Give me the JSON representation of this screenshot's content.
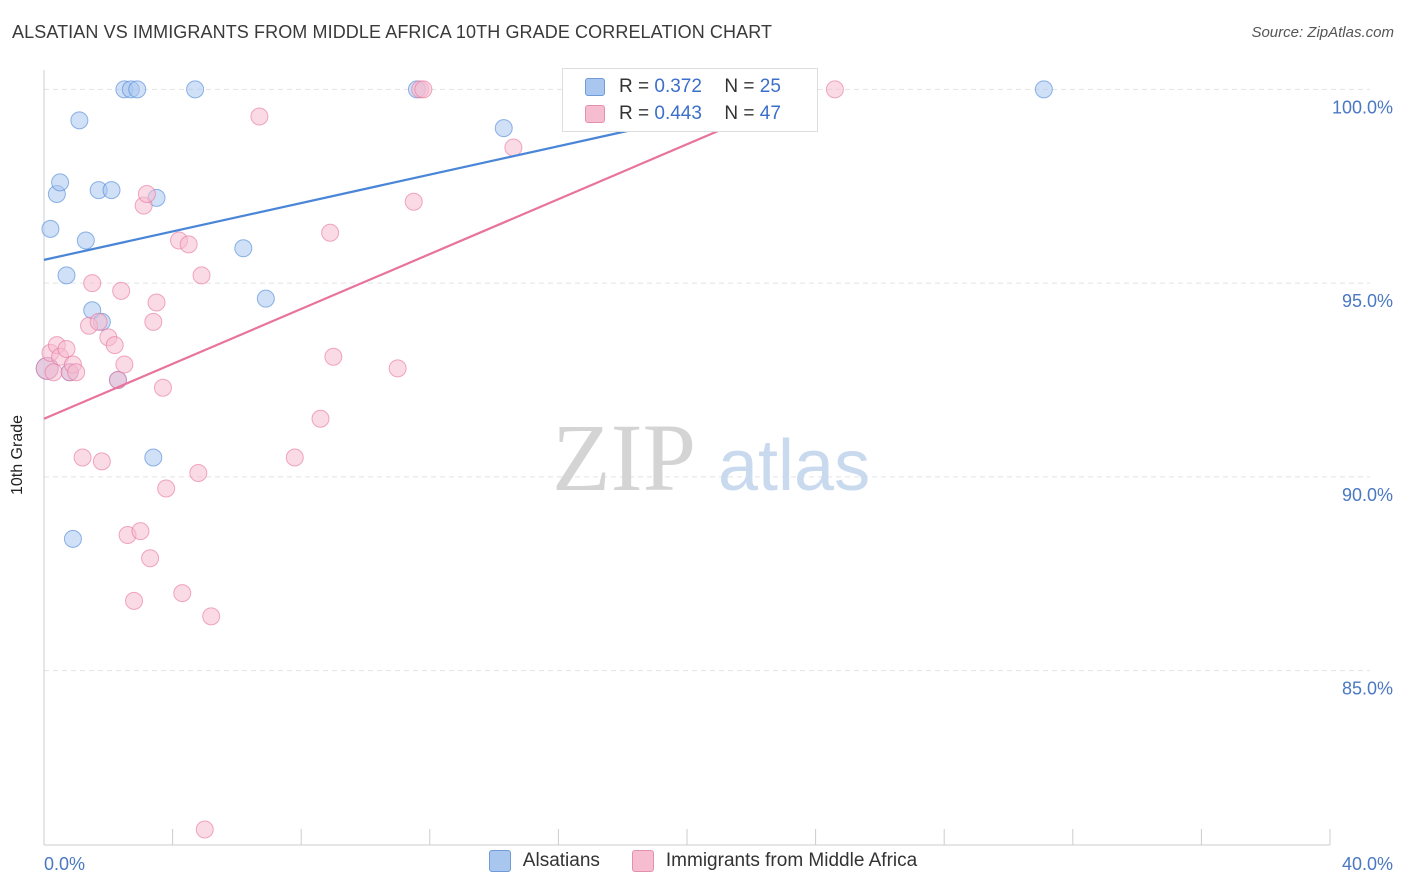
{
  "title": "ALSATIAN VS IMMIGRANTS FROM MIDDLE AFRICA 10TH GRADE CORRELATION CHART",
  "source": "Source: ZipAtlas.com",
  "watermark": {
    "zip": "ZIP",
    "atlas": "atlas"
  },
  "legend_top": {
    "rows": [
      {
        "r_label": "R =",
        "r_value": "0.372",
        "n_label": "N =",
        "n_value": "25"
      },
      {
        "r_label": "R =",
        "r_value": "0.443",
        "n_label": "N =",
        "n_value": "47"
      }
    ]
  },
  "chart_data": {
    "type": "scatter",
    "title": "ALSATIAN VS IMMIGRANTS FROM MIDDLE AFRICA 10TH GRADE CORRELATION CHART",
    "xlabel": "",
    "ylabel": "10th Grade",
    "xlim": [
      0,
      40
    ],
    "ylim": [
      80.5,
      100.5
    ],
    "x_tick_labels": [
      "0.0%",
      "40.0%"
    ],
    "y_ticks": [
      85,
      90,
      95,
      100
    ],
    "y_tick_labels": [
      "85.0%",
      "90.0%",
      "95.0%",
      "100.0%"
    ],
    "grid": true,
    "series": [
      {
        "name": "Alsatians",
        "color": "#4a86d8",
        "fill": "#a9c6ee",
        "r": 0.372,
        "n": 25,
        "trend": [
          [
            0,
            95.6
          ],
          [
            24.0,
            100.0
          ]
        ],
        "points": [
          [
            0.1,
            92.8
          ],
          [
            0.2,
            96.4
          ],
          [
            0.4,
            97.3
          ],
          [
            0.5,
            97.6
          ],
          [
            0.7,
            95.2
          ],
          [
            0.8,
            92.7
          ],
          [
            0.9,
            88.4
          ],
          [
            1.1,
            99.2
          ],
          [
            1.3,
            96.1
          ],
          [
            1.5,
            94.3
          ],
          [
            1.7,
            97.4
          ],
          [
            1.8,
            94.0
          ],
          [
            2.1,
            97.4
          ],
          [
            2.3,
            92.5
          ],
          [
            2.5,
            100.0
          ],
          [
            2.7,
            100.0
          ],
          [
            2.9,
            100.0
          ],
          [
            3.4,
            90.5
          ],
          [
            3.5,
            97.2
          ],
          [
            4.7,
            100.0
          ],
          [
            6.2,
            95.9
          ],
          [
            6.9,
            94.6
          ],
          [
            11.6,
            100.0
          ],
          [
            14.3,
            99.0
          ],
          [
            31.1,
            100.0
          ]
        ]
      },
      {
        "name": "Immigrants from Middle Africa",
        "color": "#e8739c",
        "fill": "#f6bccf",
        "r": 0.443,
        "n": 47,
        "trend": [
          [
            0,
            91.5
          ],
          [
            24.0,
            100.0
          ]
        ],
        "points": [
          [
            0.1,
            92.8
          ],
          [
            0.2,
            93.2
          ],
          [
            0.3,
            92.7
          ],
          [
            0.4,
            93.4
          ],
          [
            0.5,
            93.1
          ],
          [
            0.7,
            93.3
          ],
          [
            0.8,
            92.7
          ],
          [
            0.9,
            92.9
          ],
          [
            1.0,
            92.7
          ],
          [
            1.2,
            90.5
          ],
          [
            1.4,
            93.9
          ],
          [
            1.5,
            95.0
          ],
          [
            1.7,
            94.0
          ],
          [
            1.8,
            90.4
          ],
          [
            2.0,
            93.6
          ],
          [
            2.2,
            93.4
          ],
          [
            2.3,
            92.5
          ],
          [
            2.4,
            94.8
          ],
          [
            2.5,
            92.9
          ],
          [
            2.6,
            88.5
          ],
          [
            2.8,
            86.8
          ],
          [
            3.0,
            88.6
          ],
          [
            3.1,
            97.0
          ],
          [
            3.2,
            97.3
          ],
          [
            3.3,
            87.9
          ],
          [
            3.4,
            94.0
          ],
          [
            3.5,
            94.5
          ],
          [
            3.7,
            92.3
          ],
          [
            3.8,
            89.7
          ],
          [
            4.2,
            96.1
          ],
          [
            4.3,
            87.0
          ],
          [
            4.5,
            96.0
          ],
          [
            4.8,
            90.1
          ],
          [
            4.9,
            95.2
          ],
          [
            5.0,
            80.9
          ],
          [
            5.2,
            86.4
          ],
          [
            6.7,
            99.3
          ],
          [
            7.8,
            90.5
          ],
          [
            8.6,
            91.5
          ],
          [
            8.9,
            96.3
          ],
          [
            9.0,
            93.1
          ],
          [
            11.0,
            92.8
          ],
          [
            11.5,
            97.1
          ],
          [
            11.7,
            100.0
          ],
          [
            11.8,
            100.0
          ],
          [
            14.6,
            98.5
          ],
          [
            24.6,
            100.0
          ]
        ]
      }
    ]
  },
  "legend_bottom": [
    "Alsatians",
    "Immigrants from Middle Africa"
  ],
  "colors": {
    "axis_text": "#4a78c2",
    "grid": "#e3e3e3",
    "axis": "#cccccc"
  }
}
